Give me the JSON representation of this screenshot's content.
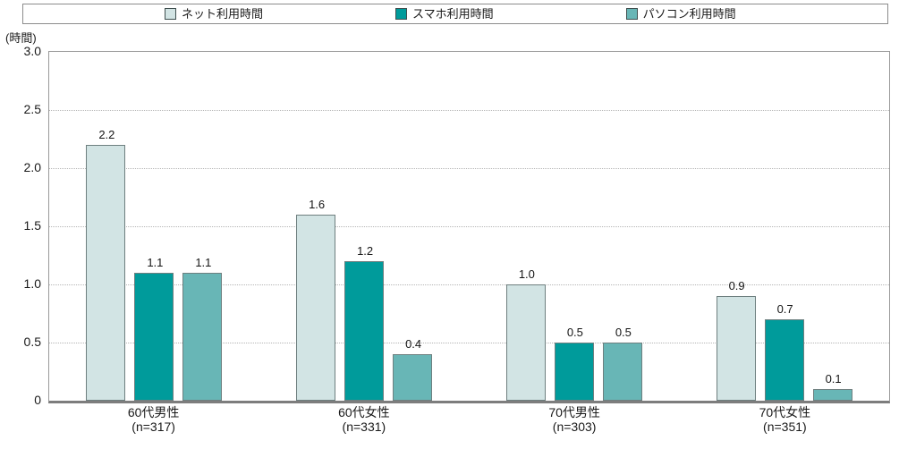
{
  "colors": {
    "series_net": "#d2e4e4",
    "series_sumaho": "#009b9b",
    "series_pasokon": "#68b6b6",
    "bar_border": "#6e7f7f",
    "plot_border": "#9a9a9a",
    "axis_line": "#7d7d7d",
    "gridline": "#b5b5b5",
    "legend_border": "#8c8c8c",
    "text": "#1a1a1a"
  },
  "chart_data": {
    "type": "bar",
    "unit_label": "(時間)",
    "ylim": [
      0,
      3.0
    ],
    "yticks": [
      3.0,
      2.5,
      2.0,
      1.5,
      1.0,
      0.5,
      0
    ],
    "ytick_labels": [
      "3.0",
      "2.5",
      "2.0",
      "1.5",
      "1.0",
      "0.5",
      "0"
    ],
    "grid_values": [
      2.5,
      2.0,
      1.5,
      1.0,
      0.5
    ],
    "grid_style": "dotted horizontal",
    "legend_position": "top",
    "categories": [
      {
        "label": "60代男性",
        "n": "(n=317)"
      },
      {
        "label": "60代女性",
        "n": "(n=331)"
      },
      {
        "label": "70代男性",
        "n": "(n=303)"
      },
      {
        "label": "70代女性",
        "n": "(n=351)"
      }
    ],
    "series": [
      {
        "name": "ネット利用時間",
        "color": "#d2e4e4",
        "values": [
          2.2,
          1.6,
          1.0,
          0.9
        ]
      },
      {
        "name": "スマホ利用時間",
        "color": "#009b9b",
        "values": [
          1.1,
          1.2,
          0.5,
          0.7
        ]
      },
      {
        "name": "パソコン利用時間",
        "color": "#68b6b6",
        "values": [
          1.1,
          0.4,
          0.5,
          0.1
        ]
      }
    ],
    "value_labels": [
      [
        "2.2",
        "1.1",
        "1.1"
      ],
      [
        "1.6",
        "1.2",
        "0.4"
      ],
      [
        "1.0",
        "0.5",
        "0.5"
      ],
      [
        "0.9",
        "0.7",
        "0.1"
      ]
    ]
  }
}
